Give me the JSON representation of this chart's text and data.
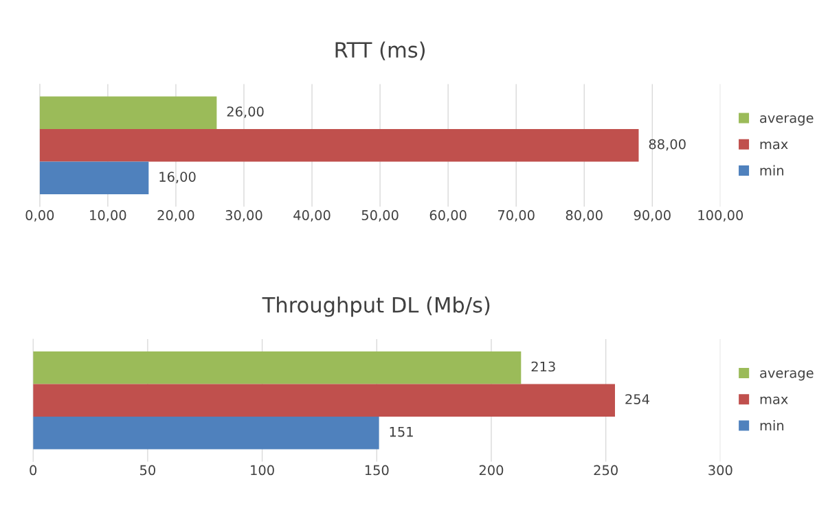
{
  "chart_data": [
    {
      "type": "bar",
      "orientation": "horizontal",
      "title": "RTT (ms)",
      "categories": [
        null
      ],
      "series": [
        {
          "name": "average",
          "color": "#9bbb59",
          "values": [
            26
          ],
          "value_labels": [
            "26,00"
          ]
        },
        {
          "name": "max",
          "color": "#c0504d",
          "values": [
            88
          ],
          "value_labels": [
            "88,00"
          ]
        },
        {
          "name": "min",
          "color": "#4f81bd",
          "values": [
            16
          ],
          "value_labels": [
            "16,00"
          ]
        }
      ],
      "xlim": [
        0,
        100
      ],
      "xticks": [
        {
          "value": 0,
          "label": "0,00"
        },
        {
          "value": 10,
          "label": "10,00"
        },
        {
          "value": 20,
          "label": "20,00"
        },
        {
          "value": 30,
          "label": "30,00"
        },
        {
          "value": 40,
          "label": "40,00"
        },
        {
          "value": 50,
          "label": "50,00"
        },
        {
          "value": 60,
          "label": "60,00"
        },
        {
          "value": 70,
          "label": "70,00"
        },
        {
          "value": 80,
          "label": "80,00"
        },
        {
          "value": 90,
          "label": "90,00"
        },
        {
          "value": 100,
          "label": "100,00"
        }
      ],
      "grid": "x",
      "legend": "right"
    },
    {
      "type": "bar",
      "orientation": "horizontal",
      "title": "Throughput DL (Mb/s)",
      "categories": [
        null
      ],
      "series": [
        {
          "name": "average",
          "color": "#9bbb59",
          "values": [
            213
          ]
        },
        {
          "name": "max",
          "color": "#c0504d",
          "values": [
            254
          ]
        },
        {
          "name": "min",
          "color": "#4f81bd",
          "values": [
            151
          ]
        }
      ],
      "data_labels": true,
      "xlim": [
        0,
        300
      ],
      "xticks": [
        0,
        50,
        100,
        150,
        200,
        250,
        300
      ],
      "grid": "x",
      "legend": "right"
    }
  ]
}
